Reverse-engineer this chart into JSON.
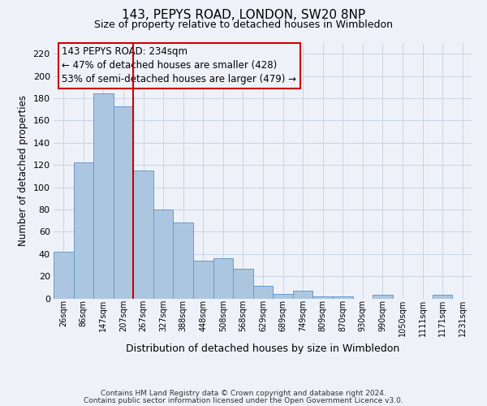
{
  "title": "143, PEPYS ROAD, LONDON, SW20 8NP",
  "subtitle": "Size of property relative to detached houses in Wimbledon",
  "xlabel": "Distribution of detached houses by size in Wimbledon",
  "ylabel": "Number of detached properties",
  "footer_line1": "Contains HM Land Registry data © Crown copyright and database right 2024.",
  "footer_line2": "Contains public sector information licensed under the Open Government Licence v3.0.",
  "bin_labels": [
    "26sqm",
    "86sqm",
    "147sqm",
    "207sqm",
    "267sqm",
    "327sqm",
    "388sqm",
    "448sqm",
    "508sqm",
    "568sqm",
    "629sqm",
    "689sqm",
    "749sqm",
    "809sqm",
    "870sqm",
    "930sqm",
    "990sqm",
    "1050sqm",
    "1111sqm",
    "1171sqm",
    "1231sqm"
  ],
  "bar_values": [
    42,
    122,
    184,
    173,
    115,
    80,
    68,
    34,
    36,
    27,
    11,
    4,
    7,
    2,
    2,
    0,
    3,
    0,
    0,
    3,
    0
  ],
  "bar_color": "#adc6e0",
  "bar_edgecolor": "#6699cc",
  "bg_color": "#eef2f8",
  "grid_color": "#c8d4e4",
  "vline_x": 3.5,
  "vline_color": "#cc0000",
  "annotation_text": "143 PEPYS ROAD: 234sqm\n← 47% of detached houses are smaller (428)\n53% of semi-detached houses are larger (479) →",
  "annotation_box_edgecolor": "#cc0000",
  "annotation_fontsize": 8.5,
  "ylim": [
    0,
    230
  ],
  "yticks": [
    0,
    20,
    40,
    60,
    80,
    100,
    120,
    140,
    160,
    180,
    200,
    220
  ]
}
